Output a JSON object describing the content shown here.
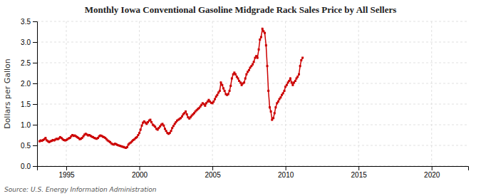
{
  "chart_data": {
    "type": "line",
    "title": "Monthly Iowa Conventional Gasoline Midgrade Rack Sales Price by All Sellers",
    "ylabel": "Dollars per Gallon",
    "source": "Source: U.S. Energy Information Administration",
    "color": "#CC0000",
    "marker": "square",
    "grid": true,
    "xlim": [
      1993.0,
      2022.5
    ],
    "xticks": [
      1995,
      2000,
      2005,
      2010,
      2015,
      2020
    ],
    "ylim": [
      0.0,
      3.5
    ],
    "yticks": [
      {
        "value": 0.0,
        "label": "0.0"
      },
      0.5,
      {
        "value": 1.0,
        "label": "1.0"
      },
      1.5,
      {
        "value": 2.0,
        "label": "2.0"
      },
      2.5,
      {
        "value": 3.0,
        "label": "3.0"
      },
      3.5
    ],
    "x": [
      1993.17,
      1993.25,
      1993.33,
      1993.42,
      1993.5,
      1993.58,
      1993.67,
      1993.75,
      1993.83,
      1993.92,
      1994.0,
      1994.08,
      1994.17,
      1994.25,
      1994.33,
      1994.42,
      1994.5,
      1994.58,
      1994.67,
      1994.75,
      1994.83,
      1994.92,
      1995.0,
      1995.08,
      1995.17,
      1995.25,
      1995.33,
      1995.42,
      1995.5,
      1995.58,
      1995.67,
      1995.75,
      1995.83,
      1995.92,
      1996.0,
      1996.08,
      1996.17,
      1996.25,
      1996.33,
      1996.42,
      1996.5,
      1996.58,
      1996.67,
      1996.75,
      1996.83,
      1996.92,
      1997.0,
      1997.08,
      1997.17,
      1997.25,
      1997.33,
      1997.42,
      1997.5,
      1997.58,
      1997.67,
      1997.75,
      1997.83,
      1997.92,
      1998.0,
      1998.08,
      1998.17,
      1998.25,
      1998.33,
      1998.42,
      1998.5,
      1998.58,
      1998.67,
      1998.75,
      1998.83,
      1998.92,
      1999.0,
      1999.08,
      1999.17,
      1999.25,
      1999.33,
      1999.42,
      1999.5,
      1999.58,
      1999.67,
      1999.75,
      1999.83,
      1999.92,
      2000.0,
      2000.08,
      2000.17,
      2000.25,
      2000.33,
      2000.42,
      2000.5,
      2000.58,
      2000.67,
      2000.75,
      2000.83,
      2000.92,
      2001.0,
      2001.08,
      2001.17,
      2001.25,
      2001.33,
      2001.42,
      2001.5,
      2001.58,
      2001.67,
      2001.75,
      2001.83,
      2001.92,
      2002.0,
      2002.08,
      2002.17,
      2002.25,
      2002.33,
      2002.42,
      2002.5,
      2002.58,
      2002.67,
      2002.75,
      2002.83,
      2002.92,
      2003.0,
      2003.08,
      2003.17,
      2003.25,
      2003.33,
      2003.42,
      2003.5,
      2003.58,
      2003.67,
      2003.75,
      2003.83,
      2003.92,
      2004.0,
      2004.08,
      2004.17,
      2004.25,
      2004.33,
      2004.42,
      2004.5,
      2004.58,
      2004.67,
      2004.75,
      2004.83,
      2004.92,
      2005.0,
      2005.08,
      2005.17,
      2005.25,
      2005.33,
      2005.42,
      2005.5,
      2005.58,
      2005.67,
      2005.75,
      2005.83,
      2005.92,
      2006.0,
      2006.08,
      2006.17,
      2006.25,
      2006.33,
      2006.42,
      2006.5,
      2006.58,
      2006.67,
      2006.75,
      2006.83,
      2006.92,
      2007.0,
      2007.08,
      2007.17,
      2007.25,
      2007.33,
      2007.42,
      2007.5,
      2007.58,
      2007.67,
      2007.75,
      2007.83,
      2007.92,
      2008.0,
      2008.08,
      2008.17,
      2008.25,
      2008.33,
      2008.42,
      2008.5,
      2008.58,
      2008.67,
      2008.75,
      2008.83,
      2008.92,
      2009.0,
      2009.08,
      2009.17,
      2009.25,
      2009.33,
      2009.42,
      2009.5,
      2009.58,
      2009.67,
      2009.75,
      2009.83,
      2009.92,
      2010.0,
      2010.08,
      2010.17,
      2010.25,
      2010.33,
      2010.42,
      2010.5,
      2010.58,
      2010.67,
      2010.75,
      2010.83,
      2010.92,
      2011.0,
      2011.08,
      2011.17
    ],
    "values": [
      0.6,
      0.62,
      0.61,
      0.63,
      0.65,
      0.68,
      0.62,
      0.6,
      0.58,
      0.6,
      0.61,
      0.63,
      0.62,
      0.64,
      0.66,
      0.65,
      0.67,
      0.7,
      0.68,
      0.65,
      0.63,
      0.62,
      0.63,
      0.65,
      0.67,
      0.68,
      0.72,
      0.75,
      0.73,
      0.74,
      0.72,
      0.7,
      0.68,
      0.65,
      0.66,
      0.68,
      0.72,
      0.76,
      0.78,
      0.76,
      0.74,
      0.75,
      0.73,
      0.71,
      0.7,
      0.68,
      0.67,
      0.66,
      0.68,
      0.72,
      0.74,
      0.73,
      0.71,
      0.7,
      0.68,
      0.65,
      0.62,
      0.6,
      0.58,
      0.55,
      0.53,
      0.52,
      0.54,
      0.53,
      0.51,
      0.5,
      0.49,
      0.48,
      0.47,
      0.46,
      0.45,
      0.44,
      0.46,
      0.52,
      0.55,
      0.57,
      0.6,
      0.63,
      0.65,
      0.68,
      0.7,
      0.75,
      0.8,
      0.88,
      0.98,
      1.05,
      1.08,
      1.05,
      1.02,
      1.06,
      1.1,
      1.12,
      1.06,
      1.0,
      0.98,
      0.95,
      0.9,
      0.88,
      0.92,
      0.96,
      1.0,
      1.02,
      0.98,
      0.9,
      0.85,
      0.8,
      0.78,
      0.8,
      0.85,
      0.92,
      0.97,
      1.02,
      1.06,
      1.1,
      1.12,
      1.14,
      1.16,
      1.2,
      1.25,
      1.28,
      1.32,
      1.25,
      1.18,
      1.15,
      1.18,
      1.22,
      1.25,
      1.28,
      1.32,
      1.35,
      1.38,
      1.4,
      1.44,
      1.48,
      1.52,
      1.5,
      1.46,
      1.52,
      1.56,
      1.6,
      1.56,
      1.53,
      1.52,
      1.56,
      1.62,
      1.68,
      1.72,
      1.78,
      1.82,
      2.02,
      1.96,
      1.88,
      1.82,
      1.74,
      1.72,
      1.74,
      1.82,
      1.94,
      2.12,
      2.22,
      2.26,
      2.22,
      2.16,
      2.12,
      2.06,
      2.02,
      1.96,
      2.0,
      2.02,
      2.12,
      2.22,
      2.28,
      2.32,
      2.38,
      2.42,
      2.46,
      2.52,
      2.62,
      2.66,
      2.62,
      2.82,
      3.06,
      3.12,
      3.32,
      3.26,
      3.22,
      2.92,
      2.42,
      1.82,
      1.42,
      1.32,
      1.12,
      1.16,
      1.28,
      1.42,
      1.52,
      1.56,
      1.62,
      1.66,
      1.72,
      1.76,
      1.82,
      1.92,
      1.96,
      2.02,
      2.06,
      2.12,
      2.02,
      1.96,
      2.02,
      2.06,
      2.12,
      2.16,
      2.22,
      2.42,
      2.56,
      2.62
    ]
  }
}
